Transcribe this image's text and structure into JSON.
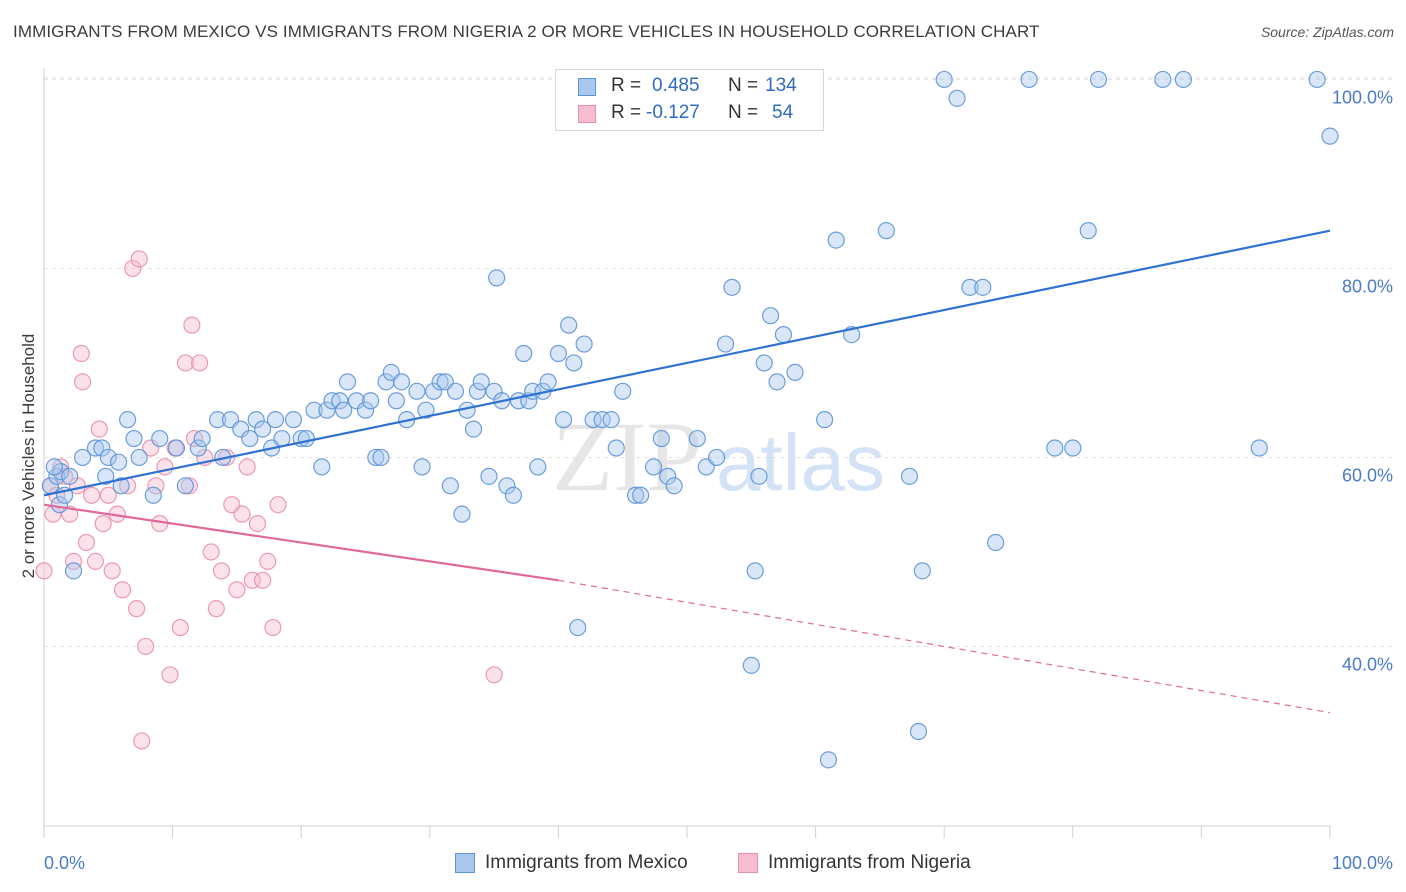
{
  "title": "IMMIGRANTS FROM MEXICO VS IMMIGRANTS FROM NIGERIA 2 OR MORE VEHICLES IN HOUSEHOLD CORRELATION CHART",
  "source": "Source: ZipAtlas.com",
  "watermark": {
    "part1": "ZIP",
    "part2": "atlas"
  },
  "legend": {
    "r_label": "R =",
    "n_label": "N =",
    "mexico": {
      "r": "0.485",
      "n": "134"
    },
    "nigeria": {
      "r": "-0.127",
      "n": "54"
    }
  },
  "colors": {
    "mexico_fill": "#a8c8ee",
    "mexico_stroke": "#5d93d8",
    "mexico_line": "#2f72d0",
    "nigeria_fill": "#f6bdd0",
    "nigeria_stroke": "#e98fac",
    "nigeria_line": "#e0699a",
    "grid": "#e3e3e3",
    "tick": "#4a7cc7"
  },
  "chart_data": {
    "type": "scatter",
    "title": "IMMIGRANTS FROM MEXICO VS IMMIGRANTS FROM NIGERIA 2 OR MORE VEHICLES IN HOUSEHOLD CORRELATION CHART",
    "xlabel": "",
    "ylabel": "2 or more Vehicles in Household",
    "xlim": [
      0,
      100
    ],
    "ylim": [
      21,
      101
    ],
    "x_tick_labels": [
      "0.0%",
      "100.0%"
    ],
    "y_ticks": [
      40,
      60,
      80,
      100
    ],
    "y_tick_labels": [
      "40.0%",
      "60.0%",
      "80.0%",
      "100.0%"
    ],
    "grid": true,
    "legend_position": "top-center",
    "series": [
      {
        "name": "Immigrants from Mexico",
        "points": [
          [
            0.5,
            57
          ],
          [
            1,
            58
          ],
          [
            1.3,
            58.5
          ],
          [
            1.2,
            55
          ],
          [
            0.8,
            59
          ],
          [
            2,
            58
          ],
          [
            1.6,
            56
          ],
          [
            2.3,
            48
          ],
          [
            3,
            60
          ],
          [
            4,
            61
          ],
          [
            4.5,
            61
          ],
          [
            5,
            60
          ],
          [
            4.8,
            58
          ],
          [
            5.8,
            59.5
          ],
          [
            6,
            57
          ],
          [
            6.5,
            64
          ],
          [
            7,
            62
          ],
          [
            7.4,
            60
          ],
          [
            8.5,
            56
          ],
          [
            9,
            62
          ],
          [
            10.3,
            61
          ],
          [
            11,
            57
          ],
          [
            12,
            61
          ],
          [
            12.3,
            62
          ],
          [
            13.5,
            64
          ],
          [
            13.9,
            60
          ],
          [
            14.5,
            64
          ],
          [
            15.3,
            63
          ],
          [
            16,
            62
          ],
          [
            16.5,
            64
          ],
          [
            17,
            63
          ],
          [
            17.7,
            61
          ],
          [
            18,
            64
          ],
          [
            18.5,
            62
          ],
          [
            19.4,
            64
          ],
          [
            20,
            62
          ],
          [
            20.4,
            62
          ],
          [
            21,
            65
          ],
          [
            21.6,
            59
          ],
          [
            22,
            65
          ],
          [
            22.4,
            66
          ],
          [
            23,
            66
          ],
          [
            23.3,
            65
          ],
          [
            23.6,
            68
          ],
          [
            24.3,
            66
          ],
          [
            25,
            65
          ],
          [
            25.4,
            66
          ],
          [
            25.8,
            60
          ],
          [
            26.2,
            60
          ],
          [
            26.6,
            68
          ],
          [
            27,
            69
          ],
          [
            27.4,
            66
          ],
          [
            27.8,
            68
          ],
          [
            28.2,
            64
          ],
          [
            29,
            67
          ],
          [
            29.4,
            59
          ],
          [
            29.7,
            65
          ],
          [
            30.3,
            67
          ],
          [
            30.8,
            68
          ],
          [
            31.2,
            68
          ],
          [
            31.6,
            57
          ],
          [
            32,
            67
          ],
          [
            32.5,
            54
          ],
          [
            32.9,
            65
          ],
          [
            33.4,
            63
          ],
          [
            33.7,
            67
          ],
          [
            34,
            68
          ],
          [
            34.6,
            58
          ],
          [
            35,
            67
          ],
          [
            35.2,
            79
          ],
          [
            35.6,
            66
          ],
          [
            36,
            57
          ],
          [
            36.5,
            56
          ],
          [
            36.9,
            66
          ],
          [
            37.3,
            71
          ],
          [
            37.7,
            66
          ],
          [
            38,
            67
          ],
          [
            38.4,
            59
          ],
          [
            38.8,
            67
          ],
          [
            39.2,
            68
          ],
          [
            40,
            71
          ],
          [
            40.4,
            64
          ],
          [
            40.8,
            74
          ],
          [
            41.2,
            70
          ],
          [
            41.5,
            42
          ],
          [
            42,
            72
          ],
          [
            42.7,
            64
          ],
          [
            43.4,
            64
          ],
          [
            44.1,
            64
          ],
          [
            44.5,
            61
          ],
          [
            45,
            67
          ],
          [
            46,
            56
          ],
          [
            46.4,
            56
          ],
          [
            47.4,
            59
          ],
          [
            48,
            62
          ],
          [
            48.5,
            58
          ],
          [
            49,
            57
          ],
          [
            50.8,
            62
          ],
          [
            51.5,
            59
          ],
          [
            52.3,
            60
          ],
          [
            53,
            72
          ],
          [
            53.5,
            78
          ],
          [
            55,
            38
          ],
          [
            55.6,
            58
          ],
          [
            55.3,
            48
          ],
          [
            56,
            70
          ],
          [
            56.5,
            75
          ],
          [
            57,
            68
          ],
          [
            57.5,
            73
          ],
          [
            58.4,
            69
          ],
          [
            60.7,
            64
          ],
          [
            61,
            28
          ],
          [
            61.6,
            83
          ],
          [
            62.8,
            73
          ],
          [
            65.5,
            84
          ],
          [
            67.3,
            58
          ],
          [
            68,
            31
          ],
          [
            68.3,
            48
          ],
          [
            70,
            100
          ],
          [
            71,
            98
          ],
          [
            72,
            78
          ],
          [
            73,
            78
          ],
          [
            74,
            51
          ],
          [
            76.6,
            100
          ],
          [
            78.6,
            61
          ],
          [
            80,
            61
          ],
          [
            81.2,
            84
          ],
          [
            82,
            100
          ],
          [
            87,
            100
          ],
          [
            88.6,
            100
          ],
          [
            94.5,
            61
          ],
          [
            99,
            100
          ],
          [
            100,
            94
          ]
        ],
        "trend": {
          "x": [
            0,
            100
          ],
          "y": [
            56,
            84
          ]
        }
      },
      {
        "name": "Immigrants from Nigeria",
        "points": [
          [
            0,
            48
          ],
          [
            0.5,
            57
          ],
          [
            0.7,
            54
          ],
          [
            1,
            56
          ],
          [
            1.3,
            59
          ],
          [
            1.6,
            58
          ],
          [
            2,
            54
          ],
          [
            2.3,
            49
          ],
          [
            2.6,
            57
          ],
          [
            3,
            68
          ],
          [
            3.3,
            51
          ],
          [
            3.7,
            56
          ],
          [
            4,
            49
          ],
          [
            4.3,
            63
          ],
          [
            4.6,
            53
          ],
          [
            5,
            56
          ],
          [
            5.3,
            48
          ],
          [
            5.7,
            54
          ],
          [
            6.1,
            46
          ],
          [
            6.5,
            57
          ],
          [
            6.9,
            80
          ],
          [
            7.2,
            44
          ],
          [
            7.6,
            30
          ],
          [
            7.9,
            40
          ],
          [
            8.3,
            61
          ],
          [
            8.7,
            57
          ],
          [
            9,
            53
          ],
          [
            9.4,
            59
          ],
          [
            9.8,
            37
          ],
          [
            10.2,
            61
          ],
          [
            10.6,
            42
          ],
          [
            11,
            70
          ],
          [
            11.3,
            57
          ],
          [
            11.7,
            62
          ],
          [
            12.1,
            70
          ],
          [
            12.5,
            60
          ],
          [
            13,
            50
          ],
          [
            13.4,
            44
          ],
          [
            13.8,
            48
          ],
          [
            14.2,
            60
          ],
          [
            14.6,
            55
          ],
          [
            15,
            46
          ],
          [
            15.4,
            54
          ],
          [
            15.8,
            59
          ],
          [
            16.2,
            47
          ],
          [
            16.6,
            53
          ],
          [
            17,
            47
          ],
          [
            17.4,
            49
          ],
          [
            17.8,
            42
          ],
          [
            18.2,
            55
          ],
          [
            35,
            37
          ],
          [
            2.9,
            71
          ],
          [
            7.4,
            81
          ],
          [
            11.5,
            74
          ]
        ],
        "trend_solid": {
          "x": [
            0,
            40
          ],
          "y": [
            55,
            47
          ]
        },
        "trend_dashed": {
          "x": [
            40,
            100
          ],
          "y": [
            47,
            33
          ]
        }
      }
    ]
  }
}
